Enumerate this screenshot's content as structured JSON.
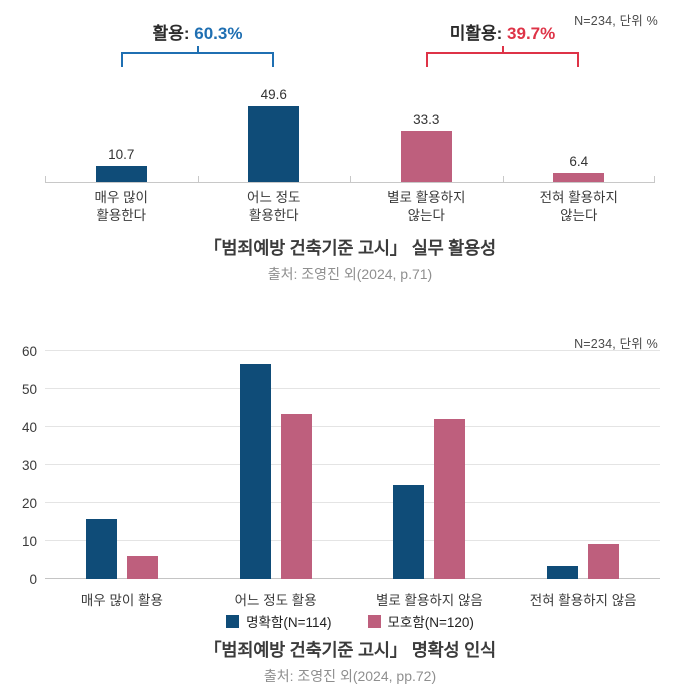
{
  "colors": {
    "navy": "#0F4C78",
    "rose": "#BE5F7D",
    "accent_blue": "#1F6FB2",
    "accent_red": "#DE3347",
    "grid": "#e4e4e4",
    "axis": "#c8c8c8"
  },
  "chart_data": [
    {
      "type": "bar",
      "note": "N=234, 단위 %",
      "title": "「범죄예방 건축기준 고시」 실무 활용성",
      "source": "출처: 조영진 외(2024, p.71)",
      "categories": [
        "매우 많이\n활용한다",
        "어느 정도\n활용한다",
        "별로 활용하지\n않는다",
        "전혀 활용하지\n않는다"
      ],
      "values": [
        10.7,
        49.6,
        33.3,
        6.4
      ],
      "bar_colors": [
        "#0F4C78",
        "#0F4C78",
        "#BE5F7D",
        "#BE5F7D"
      ],
      "value_labels": true,
      "ylim": [
        0,
        55
      ],
      "grid": false,
      "annotations": [
        {
          "prefix": "활용: ",
          "value": "60.3%",
          "color": "#1F6FB2",
          "span_categories": [
            0,
            1
          ]
        },
        {
          "prefix": "미활용: ",
          "value": "39.7%",
          "color": "#DE3347",
          "span_categories": [
            2,
            3
          ]
        }
      ]
    },
    {
      "type": "grouped_bar",
      "note": "N=234, 단위 %",
      "title": "「범죄예방 건축기준 고시」 명확성 인식",
      "source": "출처: 조영진 외(2024, pp.72)",
      "categories": [
        "매우 많이 활용",
        "어느 정도 활용",
        "별로 활용하지 않음",
        "전혀 활용하지 않음"
      ],
      "series": [
        {
          "name": "명확함(N=114)",
          "color": "#0F4C78",
          "values": [
            15.8,
            56.5,
            24.8,
            3.5
          ]
        },
        {
          "name": "모호함(N=120)",
          "color": "#BE5F7D",
          "values": [
            6.0,
            43.5,
            42.0,
            9.1
          ]
        }
      ],
      "ylim": [
        0,
        60
      ],
      "yticks": [
        0,
        10,
        20,
        30,
        40,
        50,
        60
      ],
      "grid": true,
      "legend_position": "bottom"
    }
  ]
}
